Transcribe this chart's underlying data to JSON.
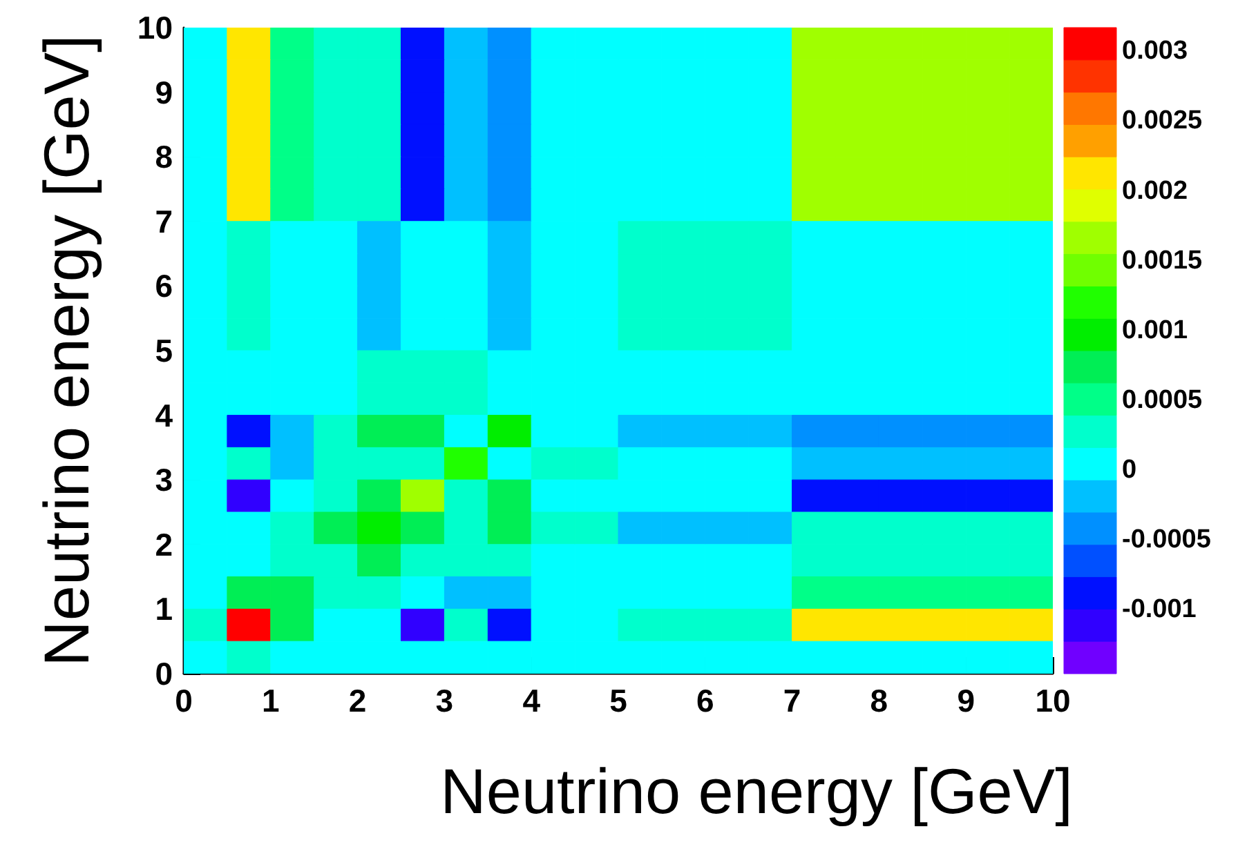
{
  "chart_data": {
    "type": "heatmap",
    "xlabel": "Neutrino energy [GeV]",
    "ylabel": "Neutrino energy [GeV]",
    "xlim": [
      0,
      10
    ],
    "ylim": [
      0,
      10
    ],
    "xticks": [
      0,
      1,
      2,
      3,
      4,
      5,
      6,
      7,
      8,
      9,
      10
    ],
    "yticks": [
      0,
      1,
      2,
      3,
      4,
      5,
      6,
      7,
      8,
      9,
      10
    ],
    "clim": [
      -0.00146,
      0.00317
    ],
    "cticks": [
      -0.001,
      -0.0005,
      0,
      0.0005,
      0.001,
      0.0015,
      0.002,
      0.0025,
      0.003
    ],
    "colors": [
      "#7000ff",
      "#3000ff",
      "#0010ff",
      "#0050ff",
      "#0090ff",
      "#00c0ff",
      "#00ffff",
      "#00ffcc",
      "#00ff88",
      "#00ee55",
      "#00ee00",
      "#20ff00",
      "#70ff00",
      "#a0ff00",
      "#e0ff00",
      "#ffe600",
      "#ffa000",
      "#ff7700",
      "#ff3300",
      "#ff0000"
    ],
    "cells": [
      [
        5e-05,
        0.00213,
        0.00051,
        0.00028,
        0.00028,
        -0.00088,
        -0.00018,
        -0.00042,
        5e-05,
        5e-05,
        5e-05,
        5e-05,
        5e-05,
        5e-05,
        0.00167,
        0.00167,
        0.00167,
        0.00167,
        0.00167,
        0.00167
      ],
      [
        5e-05,
        0.00213,
        0.00051,
        0.00028,
        0.00028,
        -0.00088,
        -0.00018,
        -0.00042,
        5e-05,
        5e-05,
        5e-05,
        5e-05,
        5e-05,
        5e-05,
        0.00167,
        0.00167,
        0.00167,
        0.00167,
        0.00167,
        0.00167
      ],
      [
        5e-05,
        0.00213,
        0.00051,
        0.00028,
        0.00028,
        -0.00088,
        -0.00018,
        -0.00042,
        5e-05,
        5e-05,
        5e-05,
        5e-05,
        5e-05,
        5e-05,
        0.00167,
        0.00167,
        0.00167,
        0.00167,
        0.00167,
        0.00167
      ],
      [
        5e-05,
        0.00213,
        0.00051,
        0.00028,
        0.00028,
        -0.00088,
        -0.00018,
        -0.00042,
        5e-05,
        5e-05,
        5e-05,
        5e-05,
        5e-05,
        5e-05,
        0.00167,
        0.00167,
        0.00167,
        0.00167,
        0.00167,
        0.00167
      ],
      [
        5e-05,
        0.00213,
        0.00051,
        0.00028,
        0.00028,
        -0.00088,
        -0.00018,
        -0.00042,
        5e-05,
        5e-05,
        5e-05,
        5e-05,
        5e-05,
        5e-05,
        0.00167,
        0.00167,
        0.00167,
        0.00167,
        0.00167,
        0.00167
      ],
      [
        5e-05,
        0.00213,
        0.00051,
        0.00028,
        0.00028,
        -0.00088,
        -0.00018,
        -0.00042,
        5e-05,
        5e-05,
        5e-05,
        5e-05,
        5e-05,
        5e-05,
        0.00167,
        0.00167,
        0.00167,
        0.00167,
        0.00167,
        0.00167
      ],
      [
        5e-05,
        0.00028,
        5e-05,
        5e-05,
        -0.00018,
        5e-05,
        5e-05,
        -0.00018,
        5e-05,
        5e-05,
        0.00028,
        0.00028,
        0.00028,
        0.00028,
        5e-05,
        5e-05,
        5e-05,
        5e-05,
        5e-05,
        5e-05
      ],
      [
        5e-05,
        0.00028,
        5e-05,
        5e-05,
        -0.00018,
        5e-05,
        5e-05,
        -0.00018,
        5e-05,
        5e-05,
        0.00028,
        0.00028,
        0.00028,
        0.00028,
        5e-05,
        5e-05,
        5e-05,
        5e-05,
        5e-05,
        5e-05
      ],
      [
        5e-05,
        0.00028,
        5e-05,
        5e-05,
        -0.00018,
        5e-05,
        5e-05,
        -0.00018,
        5e-05,
        5e-05,
        0.00028,
        0.00028,
        0.00028,
        0.00028,
        5e-05,
        5e-05,
        5e-05,
        5e-05,
        5e-05,
        5e-05
      ],
      [
        5e-05,
        0.00028,
        5e-05,
        5e-05,
        -0.00018,
        5e-05,
        5e-05,
        -0.00018,
        5e-05,
        5e-05,
        0.00028,
        0.00028,
        0.00028,
        0.00028,
        5e-05,
        5e-05,
        5e-05,
        5e-05,
        5e-05,
        5e-05
      ],
      [
        5e-05,
        5e-05,
        5e-05,
        5e-05,
        0.00028,
        0.00028,
        0.00028,
        5e-05,
        5e-05,
        5e-05,
        5e-05,
        5e-05,
        5e-05,
        5e-05,
        5e-05,
        5e-05,
        5e-05,
        5e-05,
        5e-05,
        5e-05
      ],
      [
        5e-05,
        5e-05,
        5e-05,
        5e-05,
        0.00028,
        0.00028,
        0.00028,
        5e-05,
        5e-05,
        5e-05,
        5e-05,
        5e-05,
        5e-05,
        5e-05,
        5e-05,
        5e-05,
        5e-05,
        5e-05,
        5e-05,
        5e-05
      ],
      [
        5e-05,
        -0.00088,
        -0.00018,
        0.00028,
        0.00074,
        0.00074,
        5e-05,
        0.00097,
        5e-05,
        5e-05,
        -0.00018,
        -0.00018,
        -0.00018,
        -0.00018,
        -0.00042,
        -0.00042,
        -0.00042,
        -0.00042,
        -0.00042,
        -0.00042
      ],
      [
        5e-05,
        0.00028,
        -0.00018,
        0.00028,
        0.00028,
        0.00028,
        0.0012,
        5e-05,
        0.00028,
        0.00028,
        5e-05,
        5e-05,
        5e-05,
        5e-05,
        -0.00018,
        -0.00018,
        -0.00018,
        -0.00018,
        -0.00018,
        -0.00018
      ],
      [
        5e-05,
        -0.00111,
        5e-05,
        0.00028,
        0.00074,
        0.00167,
        0.00028,
        0.00074,
        5e-05,
        5e-05,
        5e-05,
        5e-05,
        5e-05,
        5e-05,
        -0.00088,
        -0.00088,
        -0.00088,
        -0.00088,
        -0.00088,
        -0.00088
      ],
      [
        5e-05,
        5e-05,
        0.00028,
        0.00074,
        0.00097,
        0.00074,
        0.00028,
        0.00074,
        0.00028,
        0.00028,
        -0.00018,
        -0.00018,
        -0.00018,
        -0.00018,
        0.00028,
        0.00028,
        0.00028,
        0.00028,
        0.00028,
        0.00028
      ],
      [
        5e-05,
        5e-05,
        0.00028,
        0.00028,
        0.00074,
        0.00028,
        0.00028,
        0.00028,
        5e-05,
        5e-05,
        5e-05,
        5e-05,
        5e-05,
        5e-05,
        0.00028,
        0.00028,
        0.00028,
        0.00028,
        0.00028,
        0.00028
      ],
      [
        5e-05,
        0.00074,
        0.00074,
        0.00028,
        0.00028,
        5e-05,
        -0.00018,
        -0.00018,
        5e-05,
        5e-05,
        5e-05,
        5e-05,
        5e-05,
        5e-05,
        0.00051,
        0.00051,
        0.00051,
        0.00051,
        0.00051,
        0.00051
      ],
      [
        0.00028,
        0.00305,
        0.00074,
        5e-05,
        5e-05,
        -0.00111,
        0.00028,
        -0.00088,
        5e-05,
        5e-05,
        0.00028,
        0.00028,
        0.00028,
        0.00028,
        0.00213,
        0.00213,
        0.00213,
        0.00213,
        0.00213,
        0.00213
      ],
      [
        5e-05,
        0.00028,
        5e-05,
        5e-05,
        5e-05,
        5e-05,
        5e-05,
        5e-05,
        5e-05,
        5e-05,
        5e-05,
        5e-05,
        5e-05,
        5e-05,
        5e-05,
        5e-05,
        5e-05,
        5e-05,
        5e-05,
        5e-05
      ]
    ]
  }
}
